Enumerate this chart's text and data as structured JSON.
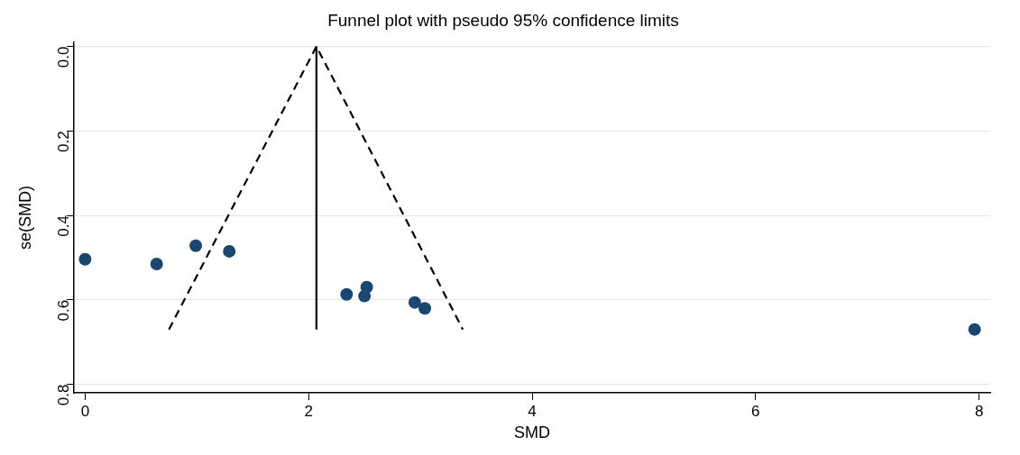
{
  "chart_data": {
    "type": "scatter",
    "title": "Funnel plot with pseudo 95% confidence limits",
    "xlabel": "SMD",
    "ylabel": "se(SMD)",
    "xlim": [
      -0.1,
      8.1
    ],
    "xticks": [
      0,
      2,
      4,
      6,
      8
    ],
    "ylim": [
      0.82,
      -0.01
    ],
    "yticks": [
      {
        "value": 0,
        "label": "0.0"
      },
      0.2,
      0.4,
      0.6,
      0.8
    ],
    "grid": "y",
    "legend": false,
    "series": [
      {
        "type": "scatter",
        "color": "#1a476f",
        "marker": "circle",
        "x": [
          0.0,
          0.64,
          0.99,
          1.29,
          2.34,
          2.52,
          2.5,
          2.95,
          3.04,
          7.96
        ],
        "values": [
          0.504,
          0.515,
          0.472,
          0.485,
          0.587,
          0.57,
          0.591,
          0.606,
          0.62,
          0.67
        ]
      },
      {
        "type": "line",
        "color": "#000000",
        "line_style": "dashed",
        "marker": "none",
        "x": [
          0.75,
          2.07,
          3.38
        ],
        "values": [
          0.67,
          0,
          0.67
        ]
      },
      {
        "type": "line",
        "color": "#000000",
        "line_style": "solid",
        "marker": "none",
        "x": [
          2.07,
          2.07
        ],
        "values": [
          0.67,
          0
        ]
      }
    ]
  }
}
